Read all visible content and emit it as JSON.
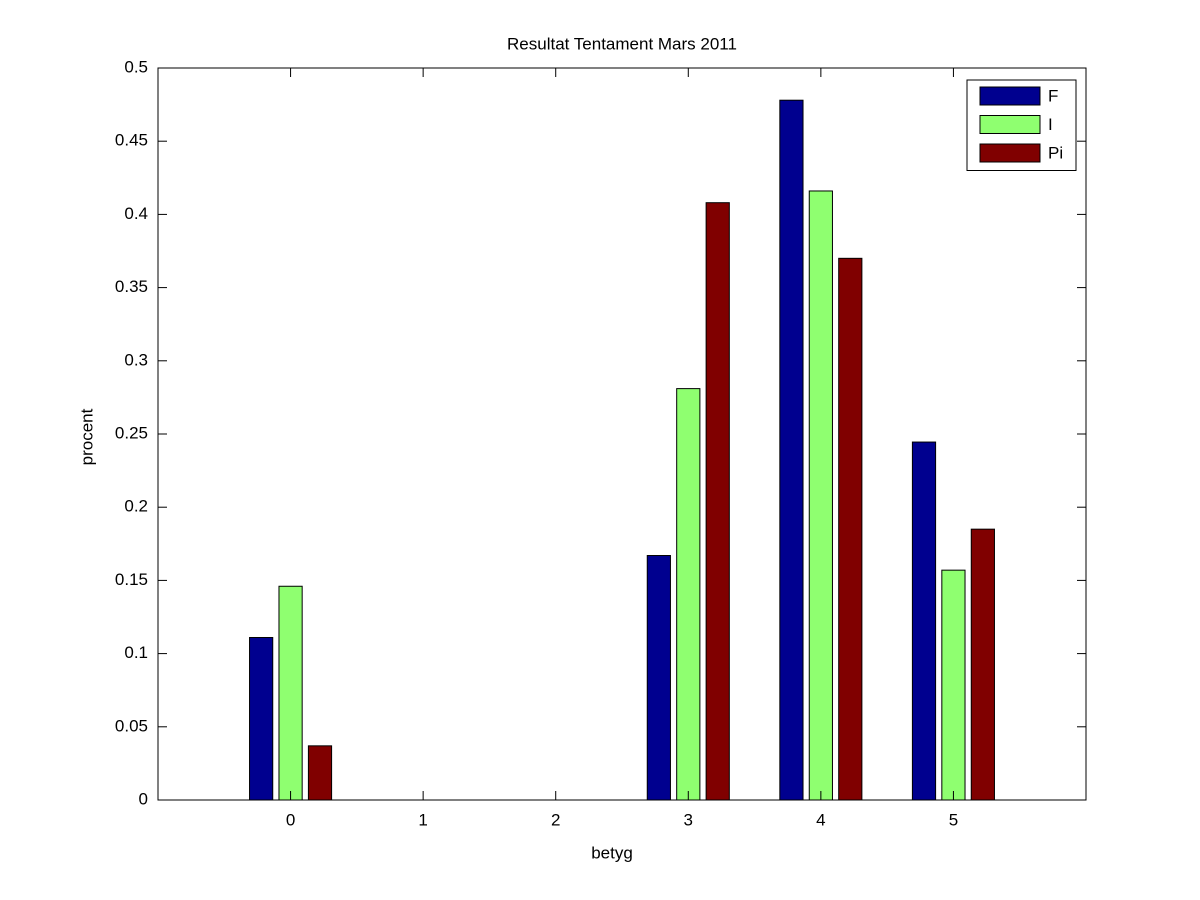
{
  "chart_data": {
    "type": "bar",
    "title": "Resultat Tentament Mars 2011",
    "x_label": "betyg",
    "y_label": "procent",
    "x": [
      0,
      1,
      2,
      3,
      4,
      5
    ],
    "series": [
      {
        "name": "F",
        "color": "#00008f",
        "values": [
          0.111,
          0,
          0,
          0.167,
          0.478,
          0.2445
        ]
      },
      {
        "name": "I",
        "color": "#8fff70",
        "values": [
          0.146,
          0,
          0,
          0.281,
          0.416,
          0.157
        ]
      },
      {
        "name": "Pi",
        "color": "#800000",
        "values": [
          0.037,
          0,
          0,
          0.408,
          0.37,
          0.185
        ]
      }
    ],
    "xlim": [
      -1,
      6
    ],
    "xticks": [
      0,
      1,
      2,
      3,
      4,
      5
    ],
    "ylim": [
      0,
      0.5
    ],
    "yticks": [
      0,
      0.05,
      0.1,
      0.15,
      0.2,
      0.25,
      0.3,
      0.35,
      0.4,
      0.45,
      0.5
    ],
    "legend": "upper-right",
    "grid": false
  }
}
